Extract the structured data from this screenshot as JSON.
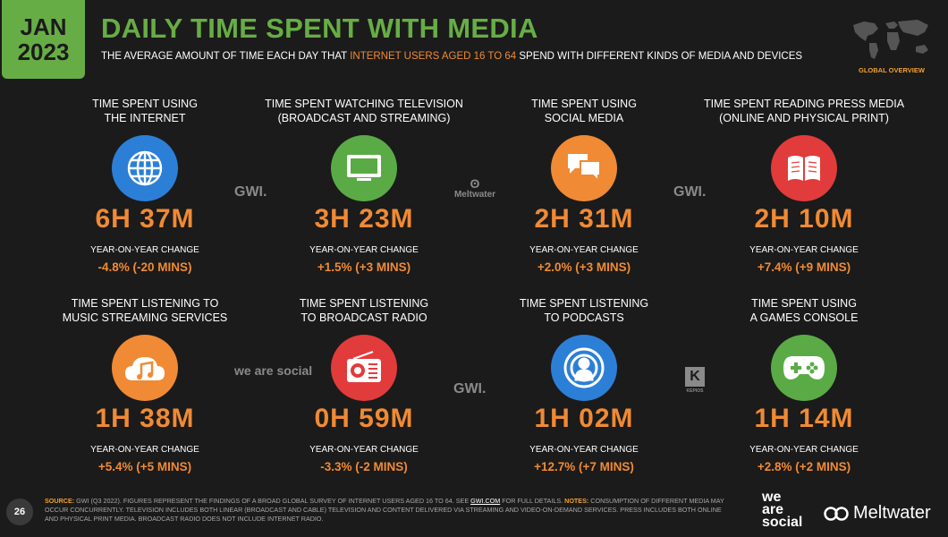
{
  "badge": {
    "month": "JAN",
    "year": "2023"
  },
  "header": {
    "title": "DAILY TIME SPENT WITH MEDIA",
    "subtitle_pre": "THE AVERAGE AMOUNT OF TIME EACH DAY THAT ",
    "subtitle_hl": "INTERNET USERS AGED 16 TO 64",
    "subtitle_post": " SPEND WITH DIFFERENT KINDS OF MEDIA AND DEVICES",
    "section": "GLOBAL OVERVIEW"
  },
  "yoy_label": "YEAR-ON-YEAR CHANGE",
  "tiles": [
    {
      "label1": "TIME SPENT USING",
      "label2": "THE INTERNET",
      "value": "6H 37M",
      "change": "-4.8% (-20 MINS)",
      "icon": "globe-icon",
      "color": "#2c7fd6"
    },
    {
      "label1": "TIME SPENT WATCHING TELEVISION",
      "label2": "(BROADCAST AND STREAMING)",
      "value": "3H 23M",
      "change": "+1.5% (+3 MINS)",
      "icon": "television-icon",
      "color": "#5aab45"
    },
    {
      "label1": "TIME SPENT USING",
      "label2": "SOCIAL MEDIA",
      "value": "2H 31M",
      "change": "+2.0% (+3 MINS)",
      "icon": "chat-bubbles-icon",
      "color": "#f08a34"
    },
    {
      "label1": "TIME SPENT READING PRESS MEDIA",
      "label2": "(ONLINE AND PHYSICAL PRINT)",
      "value": "2H 10M",
      "change": "+7.4% (+9 MINS)",
      "icon": "open-book-icon",
      "color": "#e23b3b"
    },
    {
      "label1": "TIME SPENT LISTENING TO",
      "label2": "MUSIC STREAMING SERVICES",
      "value": "1H 38M",
      "change": "+5.4% (+5 MINS)",
      "icon": "music-cloud-icon",
      "color": "#f08a34"
    },
    {
      "label1": "TIME SPENT LISTENING",
      "label2": "TO BROADCAST RADIO",
      "value": "0H 59M",
      "change": "-3.3% (-2 MINS)",
      "icon": "radio-icon",
      "color": "#e23b3b"
    },
    {
      "label1": "TIME SPENT LISTENING",
      "label2": "TO PODCASTS",
      "value": "1H 02M",
      "change": "+12.7% (+7 MINS)",
      "icon": "podcast-icon",
      "color": "#2c7fd6"
    },
    {
      "label1": "TIME SPENT USING",
      "label2": "A GAMES CONSOLE",
      "value": "1H 14M",
      "change": "+2.8% (+2 MINS)",
      "icon": "gamepad-icon",
      "color": "#5aab45"
    }
  ],
  "sources": {
    "gwi": "GWI.",
    "meltwater": "Meltwater",
    "wearesocial": "we are social",
    "kepios": "KEPIOS"
  },
  "footer": {
    "page": "26",
    "source_label": "SOURCE:",
    "source_text": " GWI (Q3 2022). FIGURES REPRESENT THE FINDINGS OF A BROAD GLOBAL SURVEY OF INTERNET USERS AGED 16 TO 64. SEE ",
    "source_link": "GWI.COM",
    "source_text2": " FOR FULL DETAILS. ",
    "notes_label": "NOTES:",
    "notes_text": " CONSUMPTION OF DIFFERENT MEDIA MAY OCCUR CONCURRENTLY. TELEVISION INCLUDES BOTH LINEAR (BROADCAST AND CABLE) TELEVISION AND CONTENT DELIVERED VIA STREAMING AND VIDEO-ON-DEMAND SERVICES. PRESS INCLUDES BOTH ONLINE AND PHYSICAL PRINT MEDIA. BROADCAST RADIO DOES NOT INCLUDE INTERNET RADIO.",
    "logo_we": "we",
    "logo_are": "are",
    "logo_social": "social",
    "logo_meltwater": "Meltwater"
  }
}
